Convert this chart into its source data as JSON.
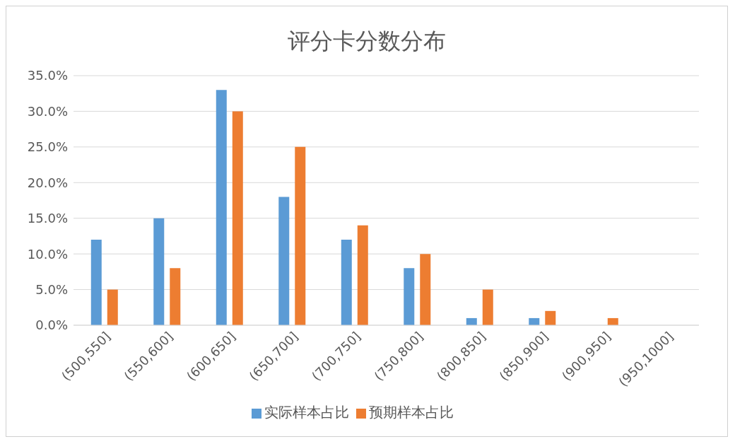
{
  "chart_data": {
    "type": "bar",
    "title": "评分卡分数分布",
    "categories": [
      "(500,550]",
      "(550,600]",
      "(600,650]",
      "(650,700]",
      "(700,750]",
      "(750,800]",
      "(800,850]",
      "(850,900]",
      "(900,950]",
      "(950,1000]"
    ],
    "series": [
      {
        "name": "实际样本占比",
        "color": "#5b9bd5",
        "values": [
          12,
          15,
          33,
          18,
          12,
          8,
          1,
          1,
          0,
          0
        ]
      },
      {
        "name": "预期样本占比",
        "color": "#ed7d31",
        "values": [
          5,
          8,
          30,
          25,
          14,
          10,
          5,
          2,
          1,
          0
        ]
      }
    ],
    "ylim": [
      0,
      35
    ],
    "yticks": [
      {
        "value": 0,
        "label": "0.0%"
      },
      {
        "value": 5,
        "label": "5.0%"
      },
      {
        "value": 10,
        "label": "10.0%"
      },
      {
        "value": 15,
        "label": "15.0%"
      },
      {
        "value": 20,
        "label": "20.0%"
      },
      {
        "value": 25,
        "label": "25.0%"
      },
      {
        "value": 30,
        "label": "30.0%"
      },
      {
        "value": 35,
        "label": "35.0%"
      }
    ],
    "grid": "y",
    "legend": "bottom"
  }
}
